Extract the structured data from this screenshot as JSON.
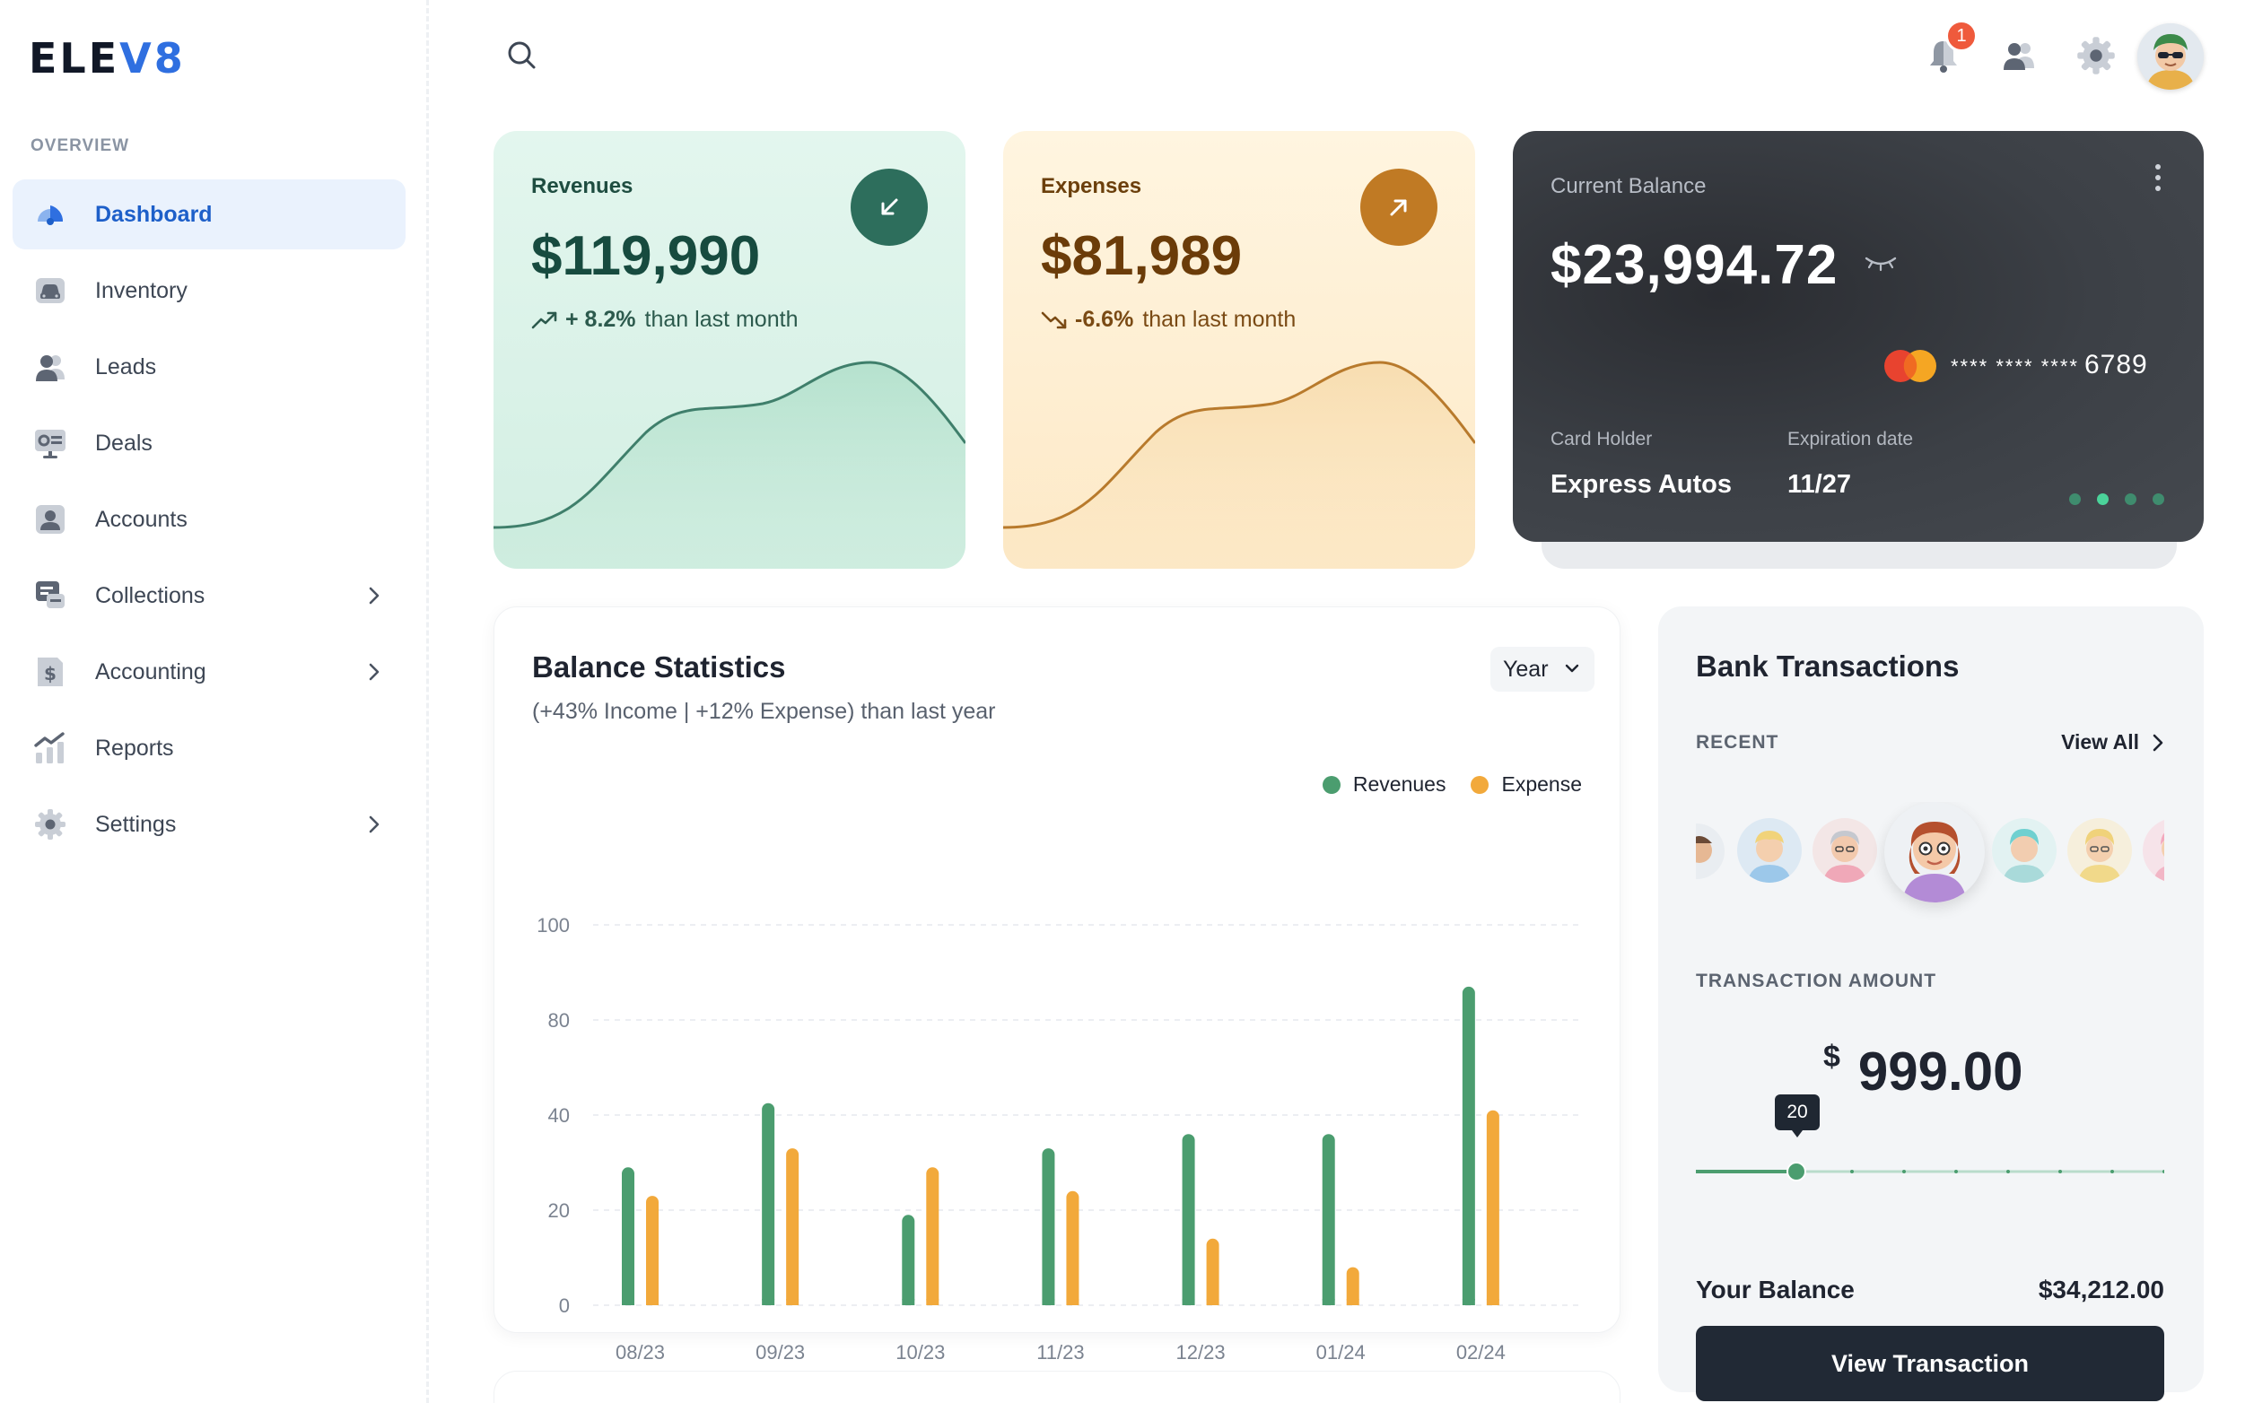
{
  "brand": {
    "logo_main": "ELE",
    "logo_accent": "V8"
  },
  "sidebar": {
    "section_label": "OVERVIEW",
    "items": [
      {
        "label": "Dashboard",
        "icon": "dashboard-icon",
        "active": true
      },
      {
        "label": "Inventory",
        "icon": "car-icon"
      },
      {
        "label": "Leads",
        "icon": "users-icon"
      },
      {
        "label": "Deals",
        "icon": "deals-icon"
      },
      {
        "label": "Accounts",
        "icon": "account-icon"
      },
      {
        "label": "Collections",
        "icon": "collections-icon",
        "chevron": true
      },
      {
        "label": "Accounting",
        "icon": "dollar-doc-icon",
        "chevron": true
      },
      {
        "label": "Reports",
        "icon": "reports-icon"
      },
      {
        "label": "Settings",
        "icon": "gear-icon",
        "chevron": true
      }
    ]
  },
  "topbar": {
    "notification_count": "1"
  },
  "revenues": {
    "title": "Revenues",
    "value": "$119,990",
    "trend_pct": "+ 8.2%",
    "trend_text": "than last month"
  },
  "expenses": {
    "title": "Expenses",
    "value": "$81,989",
    "trend_pct": "-6.6%",
    "trend_text": "than last month"
  },
  "balance_card": {
    "title": "Current Balance",
    "value": "$23,994.72",
    "card_mask": "**** **** ****",
    "card_last4": "6789",
    "holder_label": "Card Holder",
    "holder_value": "Express Autos",
    "expiry_label": "Expiration date",
    "expiry_value": "11/27",
    "active_page": 2,
    "page_count": 4
  },
  "balance_stats": {
    "title": "Balance Statistics",
    "subtitle": "(+43% Income | +12% Expense) than last year",
    "period": "Year"
  },
  "chart_data": {
    "type": "bar",
    "categories": [
      "08/23",
      "09/23",
      "10/23",
      "11/23",
      "12/23",
      "01/24",
      "02/24"
    ],
    "series": [
      {
        "name": "Revenues",
        "color": "#4b9d6f",
        "values": [
          29,
          45,
          19,
          33,
          36,
          36,
          87
        ]
      },
      {
        "name": "Expense",
        "color": "#f2a93b",
        "values": [
          23,
          33,
          29,
          24,
          14,
          8,
          42
        ]
      }
    ],
    "yticks": [
      "100",
      "80",
      "40",
      "20",
      "0"
    ],
    "grid": true,
    "legend": "top-right"
  },
  "bank": {
    "title": "Bank Transactions",
    "recent_label": "RECENT",
    "view_all": "View All",
    "amount_label": "TRANSACTION AMOUNT",
    "currency": "$",
    "amount": "999.00",
    "slider_value": "20",
    "slider_fraction": 0.2,
    "balance_label": "Your Balance",
    "balance_value": "$34,212.00",
    "button": "View Transaction"
  }
}
